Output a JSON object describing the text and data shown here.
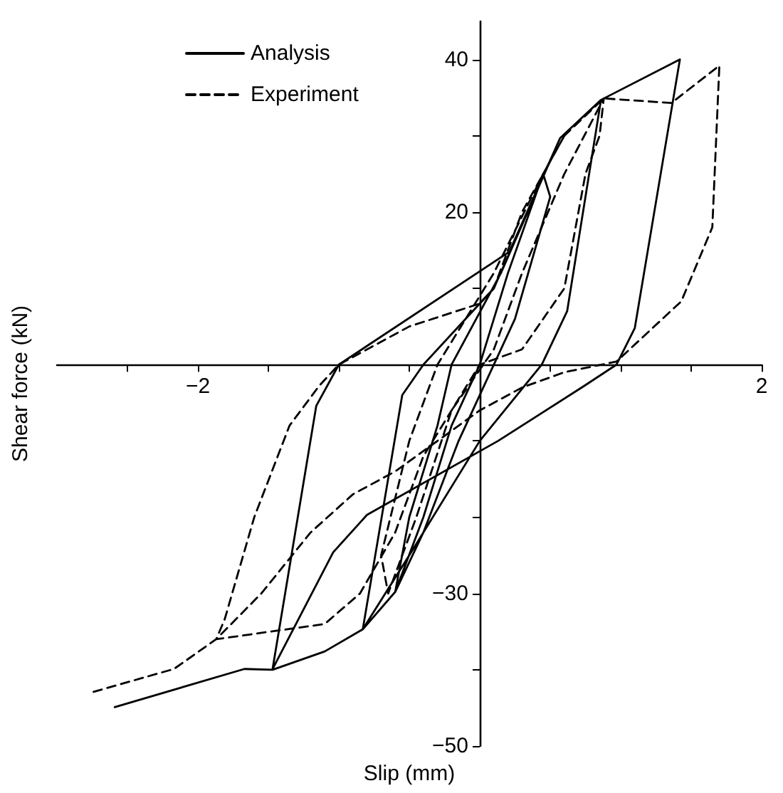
{
  "chart_data": {
    "type": "line",
    "xlabel": "Slip (mm)",
    "ylabel": "Shear force (kN)",
    "xlim": [
      -3,
      2
    ],
    "xticks": [
      {
        "value": -2.5,
        "label": null
      },
      {
        "value": -2,
        "label": "−2"
      },
      {
        "value": -1.5,
        "label": null
      },
      {
        "value": -1,
        "label": null
      },
      {
        "value": -0.5,
        "label": null
      },
      {
        "value": 0.5,
        "label": null
      },
      {
        "value": 1,
        "label": null
      },
      {
        "value": 1.5,
        "label": null
      },
      {
        "value": 2,
        "label": "2"
      }
    ],
    "ylim": [
      -50,
      45
    ],
    "yticks": [
      {
        "value": -50,
        "label": "−50"
      },
      {
        "value": -40,
        "label": null
      },
      {
        "value": -30,
        "label": "−30"
      },
      {
        "value": -20,
        "label": null
      },
      {
        "value": -10,
        "label": null
      },
      {
        "value": 10,
        "label": null
      },
      {
        "value": 20,
        "label": "20"
      },
      {
        "value": 30,
        "label": null
      },
      {
        "value": 40,
        "label": "40"
      }
    ],
    "grid": false,
    "legend": "top left",
    "series": [
      {
        "name": "Analysis",
        "color": "#000000",
        "line_style": "solid",
        "x": [
          -2.59,
          -1.67,
          -1.47,
          -1.1,
          -0.83,
          -0.6,
          -0.4,
          -0.2,
          0,
          0.2,
          0.45,
          0.5,
          0.25,
          0.1,
          -0.15,
          -0.4,
          -0.6,
          -0.5,
          -0.3,
          -0.2,
          0.15,
          0.57,
          0.86,
          0.62,
          0.44,
          0,
          -0.5,
          -0.83,
          -0.55,
          -0.4,
          0.1,
          0.57,
          0.86,
          1.42,
          1.1,
          0.97,
          0.74,
          0.13,
          -0.8,
          -1.04,
          -1.47,
          -1.16,
          -1.0,
          0.21,
          0.57
        ],
        "values": [
          -44.9,
          -39.9,
          -40,
          -37.6,
          -34.7,
          -29.8,
          -20,
          -8,
          0,
          12,
          25,
          22,
          6,
          0,
          -10,
          -22,
          -29.8,
          -20,
          -8,
          0,
          12,
          29.7,
          34.7,
          7,
          0,
          -10,
          -25,
          -34.7,
          -4,
          0,
          10,
          29.7,
          34.7,
          40,
          4.8,
          0,
          -2.8,
          -10,
          -19.7,
          -24.6,
          -39.9,
          -5.4,
          0,
          14.8,
          29.7
        ]
      },
      {
        "name": "Experiment",
        "color": "#000000",
        "line_style": "dashed",
        "x": [
          -2.74,
          -2.17,
          -1.87,
          -1.81,
          -1.6,
          -1.35,
          -1.14,
          -1.0,
          -0.5,
          0,
          0.1,
          0.3,
          0.6,
          0.88,
          1.36,
          1.7,
          1.65,
          1.43,
          0.97,
          0.6,
          0.3,
          0,
          -0.3,
          -0.6,
          -0.9,
          -1.2,
          -1.55,
          -1.87,
          -1.1,
          -0.85,
          -0.6,
          -0.4,
          -0.2,
          0,
          0.3,
          0.6,
          0.75,
          0.85,
          0.88,
          0.6,
          0.3,
          0.1,
          -0.2,
          -0.45,
          -0.65,
          -0.7,
          -0.5,
          -0.3,
          0.1,
          0.45,
          0.6
        ],
        "values": [
          -42.9,
          -39.9,
          -36,
          -33.4,
          -20,
          -8,
          -2.8,
          0,
          5,
          8,
          10,
          20,
          30,
          34.9,
          34.3,
          39.2,
          18,
          8.3,
          0.4,
          -1,
          -3,
          -6,
          -10,
          -14,
          -17,
          -22,
          -30,
          -36,
          -34,
          -30,
          -22,
          -12,
          -6,
          0,
          2,
          10,
          25,
          30,
          34.9,
          25,
          12,
          2,
          -6,
          -20,
          -30,
          -25,
          -10,
          0,
          12,
          25,
          30
        ]
      }
    ]
  }
}
